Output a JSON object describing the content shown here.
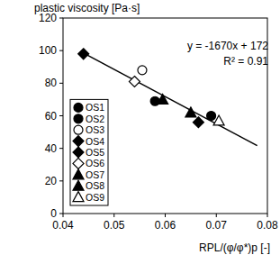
{
  "chart_data": {
    "type": "scatter",
    "title": "plastic viscosity [Pa·s]",
    "x_label": "RPL/(φ/φ*)p [-]",
    "xlim": [
      0.04,
      0.08
    ],
    "xticks": [
      0.04,
      0.05,
      0.06,
      0.07,
      0.08
    ],
    "ylim": [
      0,
      120
    ],
    "yticks": [
      0,
      20,
      40,
      60,
      80,
      100,
      120
    ],
    "grid": false,
    "legend": "lower-left",
    "annotations": [
      "R² = 0.91"
    ],
    "series": [
      {
        "name": "OS1",
        "type": "scatter",
        "color": "#000000",
        "marker": "circle",
        "x": [
          0.058
        ],
        "values": [
          69
        ]
      },
      {
        "name": "OS2",
        "type": "scatter",
        "color": "#000000",
        "marker": "circle",
        "x": [
          0.069
        ],
        "values": [
          60
        ]
      },
      {
        "name": "OS3",
        "type": "scatter",
        "color": "#000000",
        "marker": "circle-open",
        "x": [
          0.0555
        ],
        "values": [
          88
        ]
      },
      {
        "name": "OS4",
        "type": "scatter",
        "color": "#000000",
        "marker": "diamond",
        "x": [
          0.044
        ],
        "values": [
          98
        ]
      },
      {
        "name": "OS5",
        "type": "scatter",
        "color": "#000000",
        "marker": "diamond",
        "x": [
          0.0665
        ],
        "values": [
          56
        ]
      },
      {
        "name": "OS6",
        "type": "scatter",
        "color": "#000000",
        "marker": "diamond-open",
        "x": [
          0.054
        ],
        "values": [
          81
        ]
      },
      {
        "name": "OS7",
        "type": "scatter",
        "color": "#000000",
        "marker": "triangle",
        "x": [
          0.0595
        ],
        "values": [
          70
        ]
      },
      {
        "name": "OS8",
        "type": "scatter",
        "color": "#000000",
        "marker": "triangle",
        "x": [
          0.065
        ],
        "values": [
          62
        ]
      },
      {
        "name": "OS9",
        "type": "scatter",
        "color": "#000000",
        "marker": "triangle-open",
        "x": [
          0.0705
        ],
        "values": [
          57
        ]
      },
      {
        "name": "y = -1670x + 172",
        "type": "line",
        "color": "#000000",
        "line_style": "solid",
        "x": [
          0.044,
          0.078
        ],
        "values": [
          98.5,
          41.7
        ]
      }
    ]
  }
}
